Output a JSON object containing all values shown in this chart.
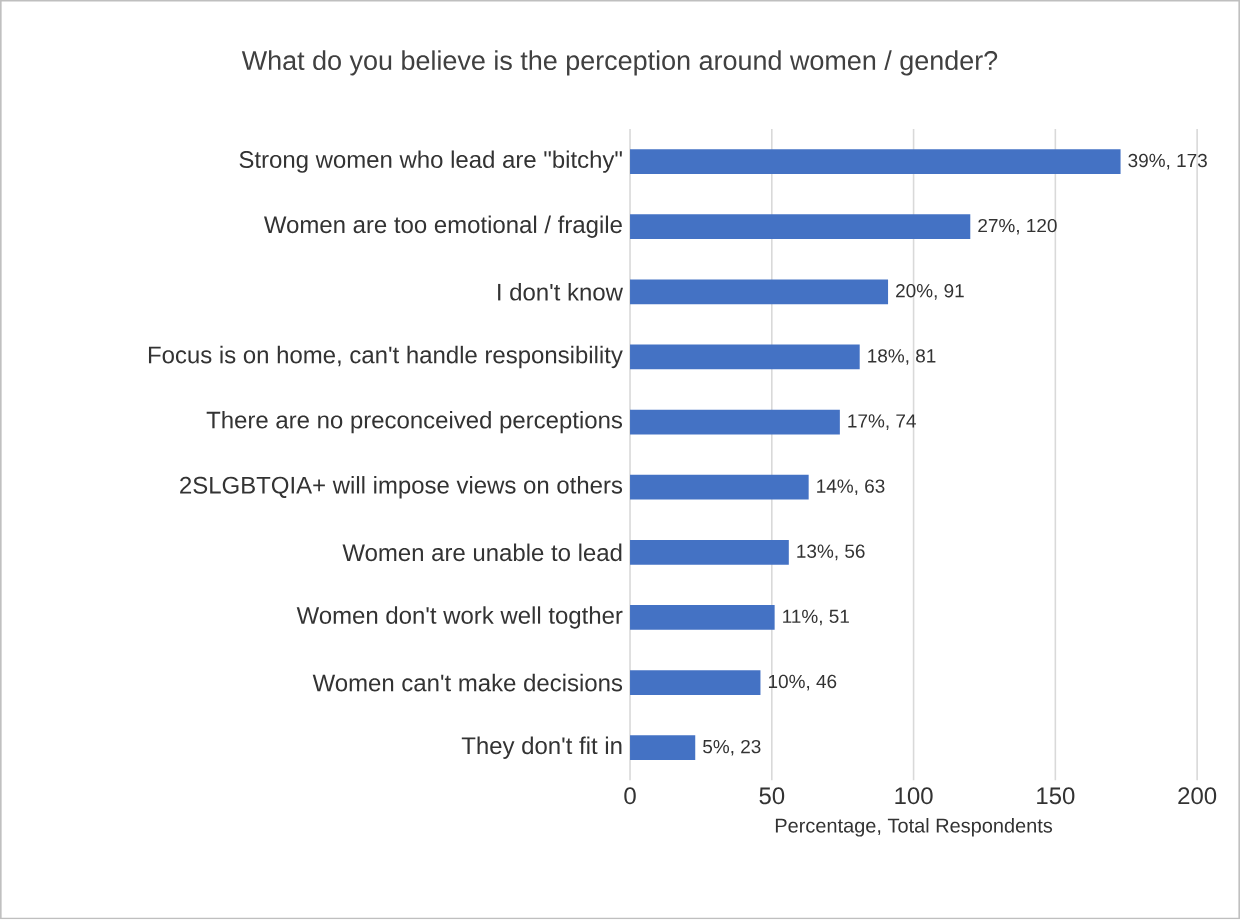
{
  "chart_data": {
    "type": "bar",
    "orientation": "horizontal",
    "title": "What do you believe is the perception around women / gender?",
    "xlabel": "Percentage, Total Respondents",
    "categories": [
      "Strong women who lead are \"bitchy\"",
      "Women are too emotional / fragile",
      "I don't know",
      "Focus is on home, can't handle responsibility",
      "There are no preconceived perceptions",
      "2SLGBTQIA+ will impose views on others",
      "Women are unable to lead",
      "Women don't work well togther",
      "Women can't make decisions",
      "They don't fit in"
    ],
    "values": [
      173,
      120,
      91,
      81,
      74,
      63,
      56,
      51,
      46,
      23
    ],
    "value_labels": [
      "39%, 173",
      "27%, 120",
      "20%, 91",
      "18%, 81",
      "17%, 74",
      "14%, 63",
      "13%, 56",
      "11%, 51",
      "10%, 46",
      "5%, 23"
    ],
    "color": "#4472c4",
    "xlim": [
      0,
      200
    ],
    "xticks": [
      0,
      50,
      100,
      150,
      200
    ],
    "grid": "x"
  }
}
